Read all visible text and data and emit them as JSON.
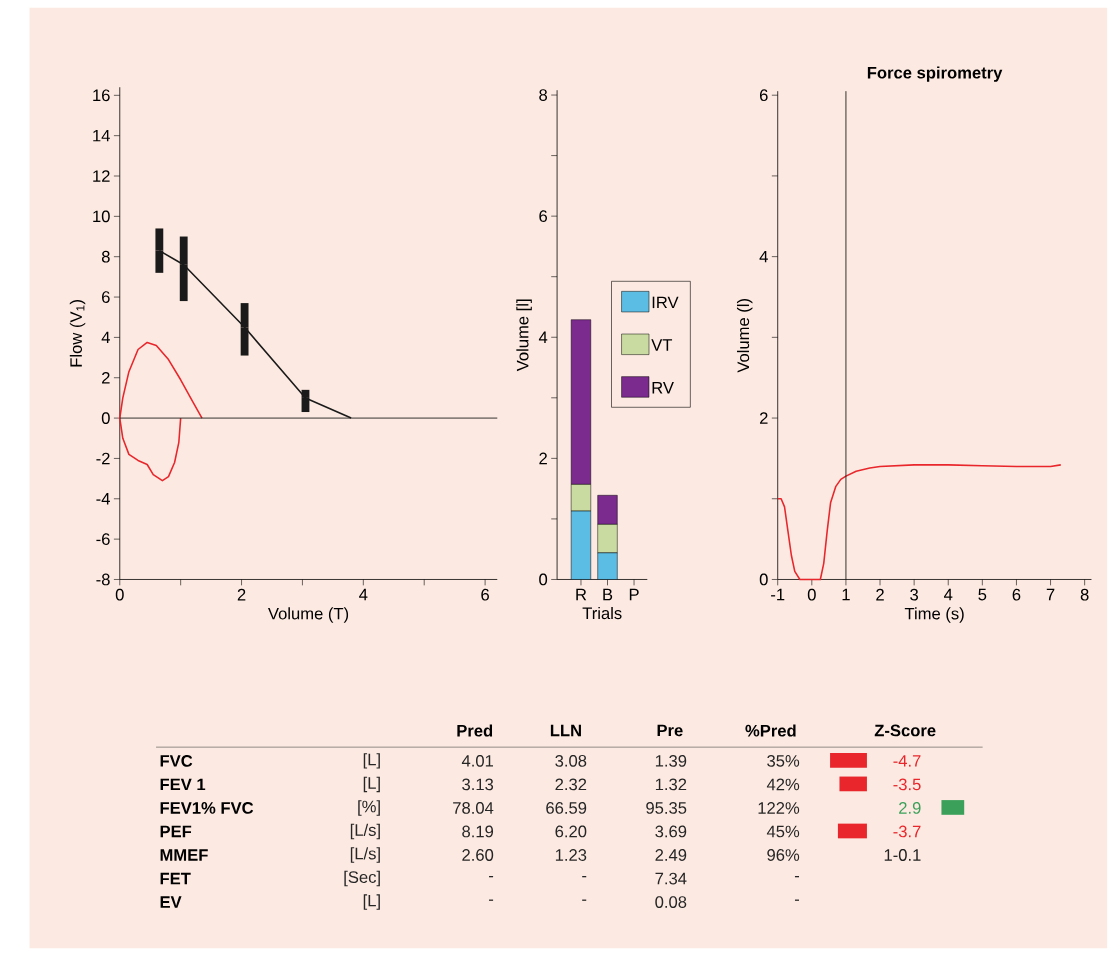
{
  "chart_data": [
    {
      "type": "line",
      "xlabel": "Volume (T)",
      "ylabel": "Flow (V$_{1}$)",
      "xlim": [
        0,
        6.2
      ],
      "ylim": [
        -8,
        16.4
      ],
      "xticks": [
        0,
        {
          "value": 1,
          "label": null
        },
        2,
        {
          "value": 3,
          "label": null
        },
        4,
        {
          "value": 5,
          "label": null
        },
        6
      ],
      "yticks": [
        -8,
        -6,
        -4,
        -2,
        0,
        2,
        4,
        6,
        8,
        10,
        12,
        14,
        16
      ],
      "series": [
        {
          "color": "#1a1a1a",
          "x": [
            0.65,
            1.05,
            2.05,
            3.05,
            3.8
          ],
          "values": [
            8.3,
            7.6,
            4.5,
            1.0,
            0
          ],
          "errors": [
            [
              7.2,
              9.4
            ],
            [
              5.8,
              9.0
            ],
            [
              3.1,
              5.7
            ],
            [
              0.3,
              1.4
            ],
            null
          ]
        },
        {
          "color": "#e8262b",
          "x": [
            1.35,
            1.2,
            1.0,
            0.8,
            0.6,
            0.45,
            0.3,
            0.15,
            0.05,
            0,
            0.05,
            0.15,
            0.3,
            0.45,
            0.55,
            0.7,
            0.8,
            0.9,
            0.97,
            1.0
          ],
          "values": [
            0,
            0.8,
            1.9,
            2.9,
            3.6,
            3.75,
            3.4,
            2.3,
            1.0,
            0,
            -1.0,
            -1.8,
            -2.1,
            -2.3,
            -2.8,
            -3.1,
            -2.9,
            -2.2,
            -1.2,
            0
          ]
        }
      ],
      "ref_lines": [
        {
          "axis": "y",
          "value": 0,
          "color": "#1a1a1a"
        }
      ]
    },
    {
      "type": "bar",
      "stacked": true,
      "xlabel": "Trials",
      "ylabel": "Volume [l]",
      "categories": [
        "R",
        "B",
        "P"
      ],
      "ylim": [
        0,
        8.08
      ],
      "yticks": [
        0,
        {
          "value": 1,
          "label": null
        },
        2,
        {
          "value": 3,
          "label": null
        },
        4,
        {
          "value": 5,
          "label": null
        },
        6,
        {
          "value": 7,
          "label": null
        },
        8
      ],
      "legend": "right",
      "series": [
        {
          "name": "IRV",
          "color": "#5bbde4",
          "values": [
            1.13,
            0.44,
            null
          ]
        },
        {
          "name": "VT",
          "color": "#c9dba0",
          "values": [
            0.44,
            0.47,
            null
          ]
        },
        {
          "name": "RV",
          "color": "#7b2a8e",
          "values": [
            2.72,
            0.48,
            null
          ]
        }
      ]
    },
    {
      "type": "line",
      "title": "Force spirometry",
      "xlabel": "Time (s)",
      "ylabel": "Volume (l)",
      "xlim": [
        -1,
        8.2
      ],
      "ylim": [
        0,
        6.05
      ],
      "xticks": [
        -1,
        0,
        1,
        2,
        3,
        4,
        5,
        6,
        7,
        8
      ],
      "yticks": [
        0,
        {
          "value": 1,
          "label": null
        },
        2,
        {
          "value": 3,
          "label": null
        },
        4,
        {
          "value": 5,
          "label": null
        },
        6
      ],
      "series": [
        {
          "color": "#e8262b",
          "x": [
            -1,
            -0.9,
            -0.8,
            -0.7,
            -0.6,
            -0.5,
            -0.35,
            0.25,
            0.35,
            0.45,
            0.55,
            0.7,
            0.85,
            1.0,
            1.3,
            1.7,
            2,
            3,
            4,
            5,
            6,
            7,
            7.3
          ],
          "values": [
            1.0,
            1.0,
            0.9,
            0.6,
            0.3,
            0.1,
            0,
            0,
            0.2,
            0.6,
            0.95,
            1.15,
            1.24,
            1.28,
            1.34,
            1.38,
            1.4,
            1.42,
            1.42,
            1.41,
            1.4,
            1.4,
            1.42
          ]
        }
      ],
      "ref_lines": [
        {
          "axis": "x",
          "value": 1,
          "color": "#1a1a1a"
        }
      ]
    },
    {
      "type": "other",
      "y_categories": [
        "Pred",
        "LLN",
        "Pre",
        "%Pred",
        "Z-Score"
      ],
      "categories": [
        "FVC",
        "FEV 1",
        "FEV1% FVC",
        "PEF",
        "MMEF",
        "FET",
        "EV"
      ],
      "cell_labels": [
        [
          "[L]",
          "4.01",
          "3.08",
          "1.39",
          "35%"
        ],
        [
          "[L]",
          "3.13",
          "2.32",
          "1.32",
          "42%"
        ],
        [
          "[%]",
          "78.04",
          "66.59",
          "95.35",
          "122%"
        ],
        [
          "[L/s]",
          "8.19",
          "6.20",
          "3.69",
          "45%"
        ],
        [
          "[L/s]",
          "2.60",
          "1.23",
          "2.49",
          "96%"
        ],
        [
          "[Sec]",
          "-",
          "-",
          "7.34",
          "-"
        ],
        [
          "[L]",
          "-",
          "-",
          "0.08",
          "-"
        ]
      ],
      "value_labels": [
        "-4.7",
        "-3.5",
        "2.9",
        "-3.7",
        "1-0.1",
        null,
        null
      ],
      "values": [
        -4.7,
        -3.5,
        2.9,
        -3.7,
        null,
        null,
        null
      ],
      "colors": [
        "#e8262b",
        "#e8262b",
        "#3aa05a",
        "#e8262b",
        "#222222",
        "#222222",
        "#222222"
      ]
    }
  ]
}
